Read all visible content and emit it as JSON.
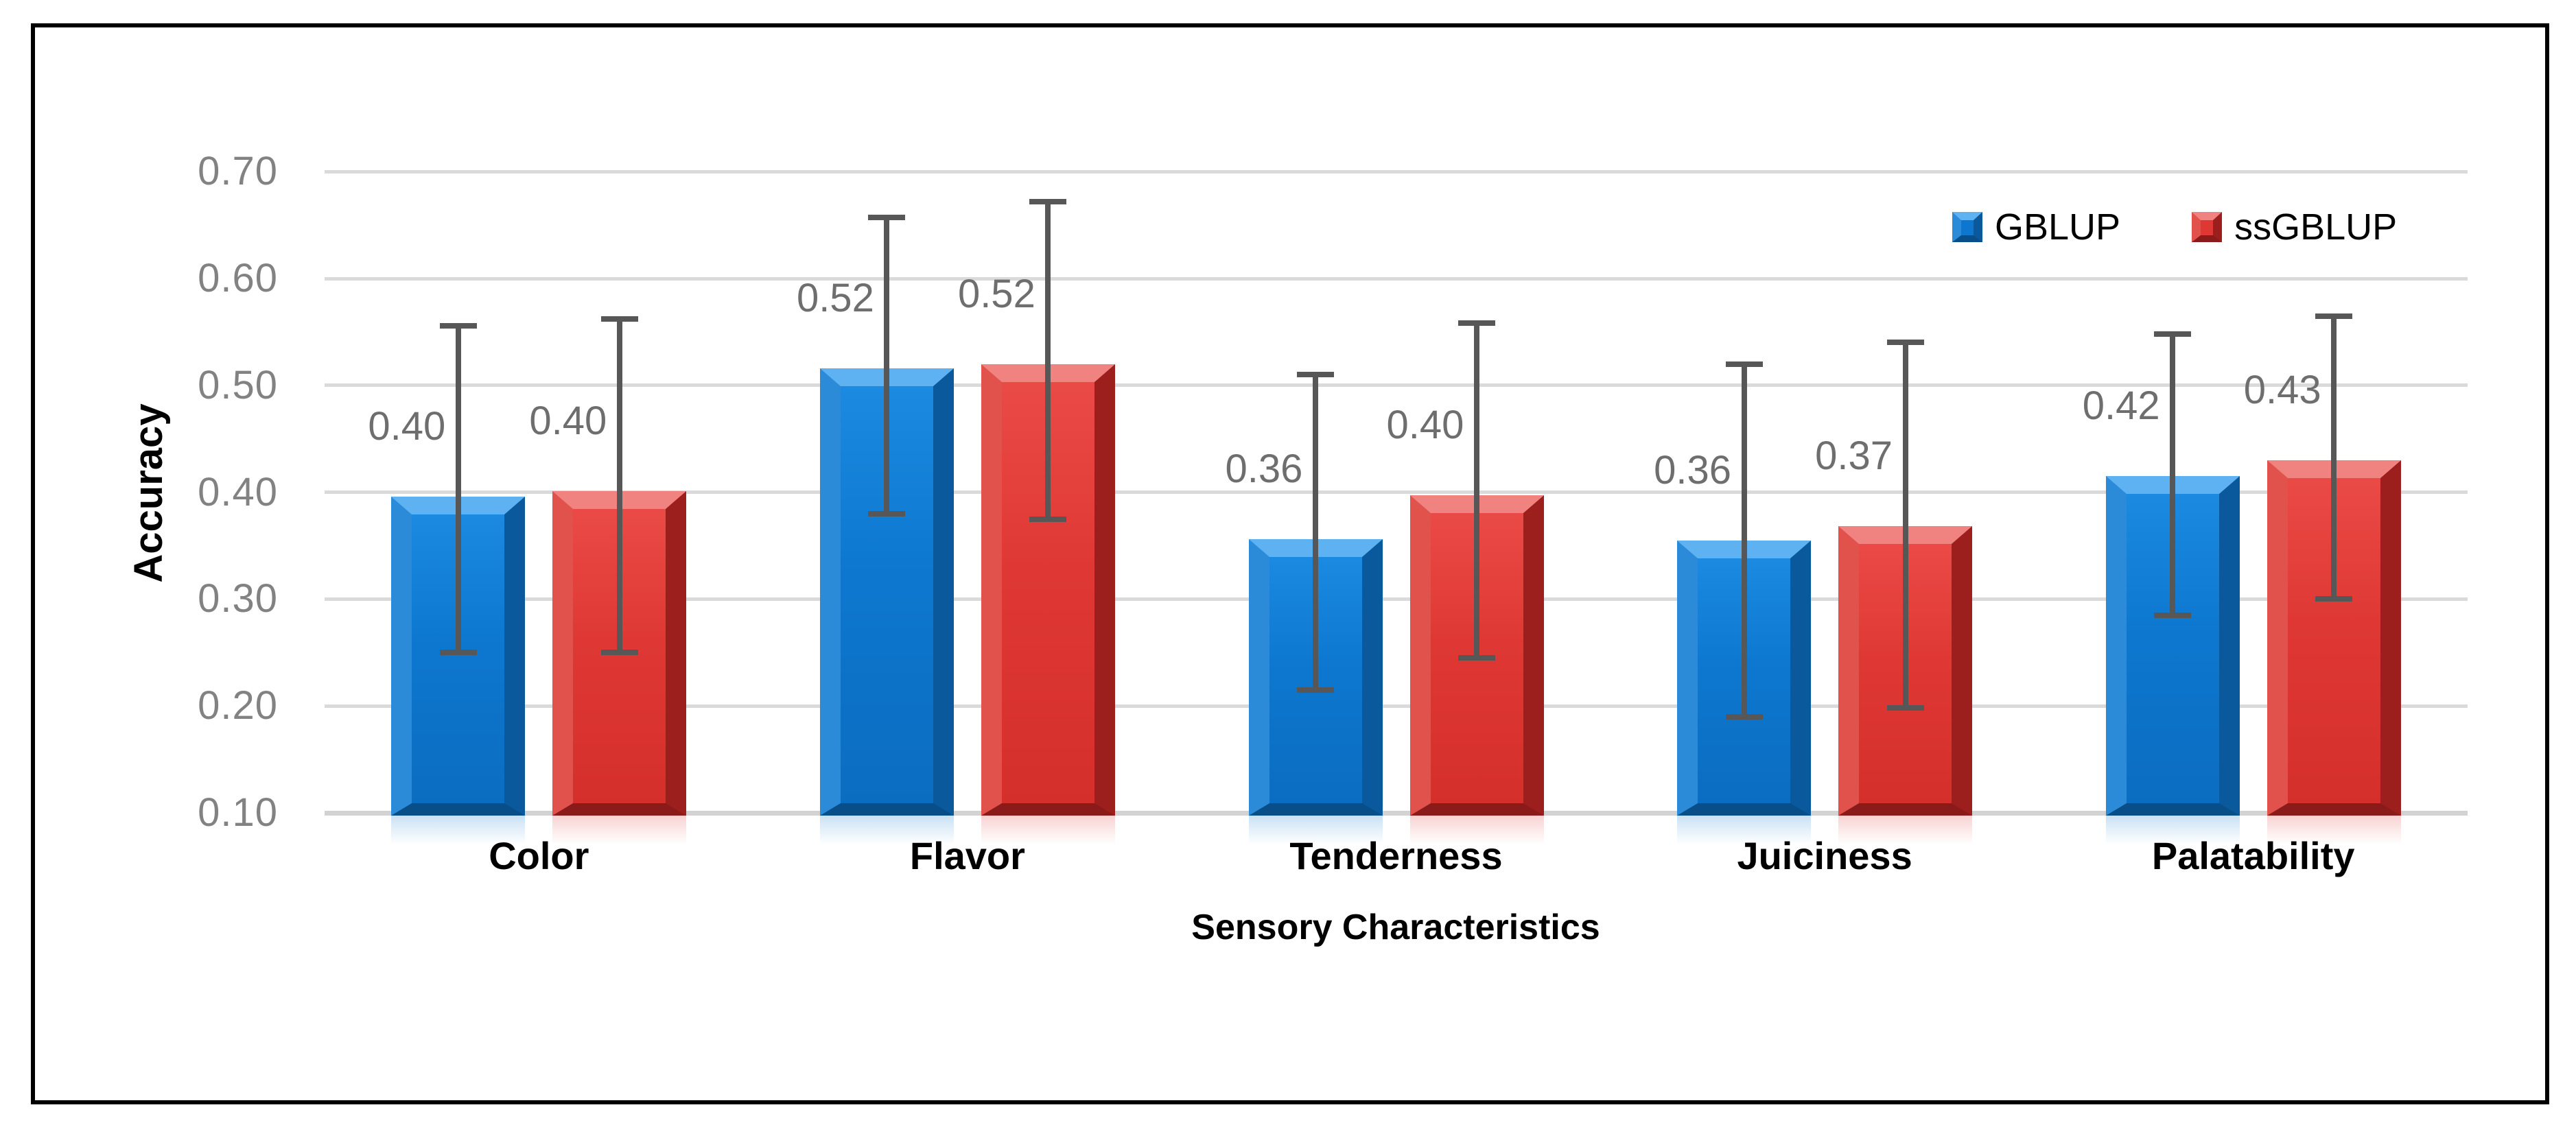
{
  "chart_data": {
    "type": "bar",
    "title": "",
    "xlabel": "Sensory Characteristics",
    "ylabel": "Accuracy",
    "categories": [
      "Color",
      "Flavor",
      "Tenderness",
      "Juiciness",
      "Palatability"
    ],
    "series": [
      {
        "name": "GBLUP",
        "color": "#0d77cf",
        "values": [
          0.4,
          0.52,
          0.36,
          0.36,
          0.42
        ],
        "data_labels": [
          "0.40",
          "0.52",
          "0.36",
          "0.36",
          "0.42"
        ],
        "plot_values": [
          0.396,
          0.516,
          0.356,
          0.355,
          0.415
        ],
        "error_low": [
          0.25,
          0.38,
          0.215,
          0.19,
          0.285
        ],
        "error_high": [
          0.556,
          0.657,
          0.51,
          0.52,
          0.548
        ]
      },
      {
        "name": "ssGBLUP",
        "color": "#df3834",
        "values": [
          0.4,
          0.52,
          0.4,
          0.37,
          0.43
        ],
        "data_labels": [
          "0.40",
          "0.52",
          "0.40",
          "0.37",
          "0.43"
        ],
        "plot_values": [
          0.401,
          0.52,
          0.397,
          0.368,
          0.43
        ],
        "error_low": [
          0.25,
          0.375,
          0.245,
          0.198,
          0.3
        ],
        "error_high": [
          0.562,
          0.672,
          0.558,
          0.54,
          0.565
        ]
      }
    ],
    "ylim": [
      0.1,
      0.7
    ],
    "ytick_labels": [
      "0.10",
      "0.20",
      "0.30",
      "0.40",
      "0.50",
      "0.60",
      "0.70"
    ],
    "ytick_values": [
      0.1,
      0.2,
      0.3,
      0.4,
      0.5,
      0.6,
      0.7
    ],
    "grid": true,
    "legend_position": "top-right",
    "style": {
      "gridline_color": "#dadada",
      "error_bar_color": "#575757",
      "tick_label_color": "#828282",
      "data_label_color": "#6e6e6e",
      "axis_title_color": "#000000",
      "border_color": "#000000",
      "background": "#ffffff"
    }
  }
}
